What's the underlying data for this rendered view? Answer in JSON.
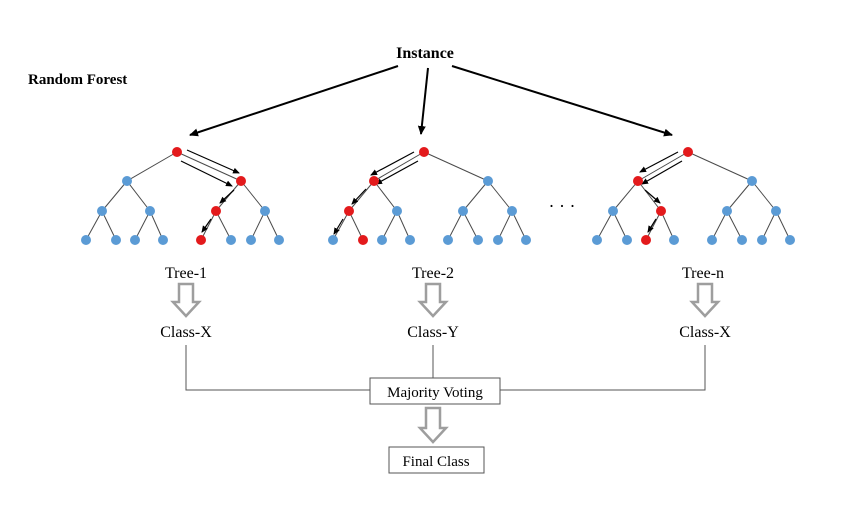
{
  "diagram": {
    "title": "Random Forest",
    "instance_label": "Instance",
    "ellipsis": "· · ·",
    "trees": [
      {
        "name": "Tree-1",
        "class": "Class-X"
      },
      {
        "name": "Tree-2",
        "class": "Class-Y"
      },
      {
        "name": "Tree-n",
        "class": "Class-X"
      }
    ],
    "majority_voting": "Majority Voting",
    "final_class": "Final Class"
  },
  "colors": {
    "node_default": "#5b9bd5",
    "node_path": "#e31a1c",
    "edge": "#4a4a4a",
    "hollow_arrow": "#9e9e9e",
    "text": "#000000"
  }
}
